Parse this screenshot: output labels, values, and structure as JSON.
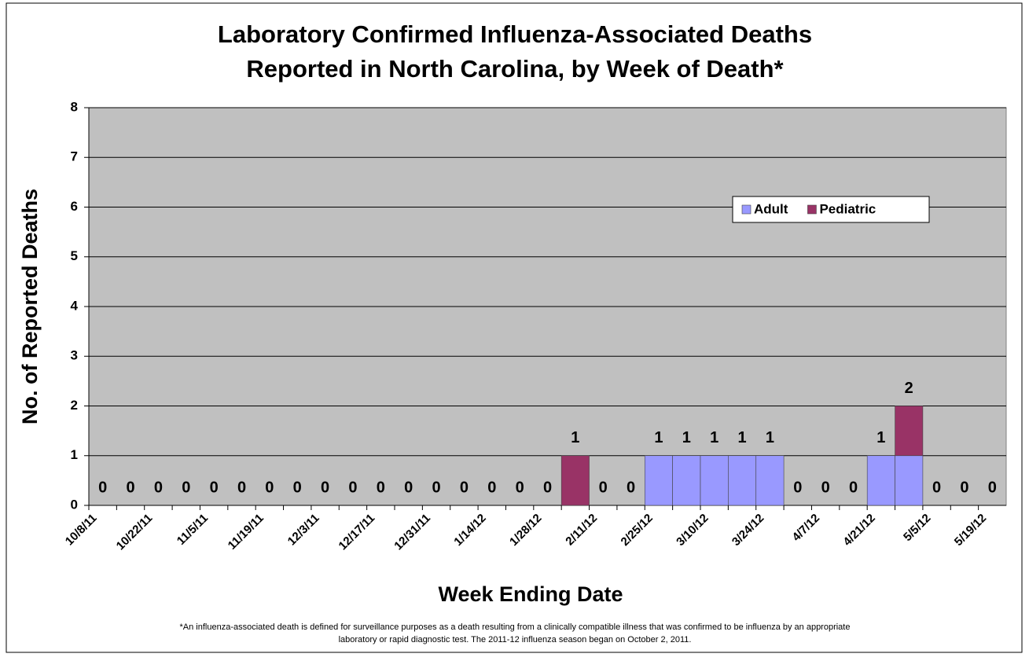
{
  "chart_data": {
    "type": "stacked_bar",
    "title": [
      "Laboratory Confirmed Influenza-Associated Deaths",
      "Reported in North Carolina, by Week of Death*"
    ],
    "x_label": "Week Ending Date",
    "y_label": "No. of Reported Deaths",
    "categories": [
      "10/8/11",
      null,
      "10/22/11",
      null,
      "11/5/11",
      null,
      "11/19/11",
      null,
      "12/3/11",
      null,
      "12/17/11",
      null,
      "12/31/11",
      null,
      "1/14/12",
      null,
      "1/28/12",
      null,
      "2/11/12",
      null,
      "2/25/12",
      null,
      "3/10/12",
      null,
      "3/24/12",
      null,
      "4/7/12",
      null,
      "4/21/12",
      null,
      "5/5/12",
      null,
      "5/19/12"
    ],
    "series": [
      {
        "name": "Adult",
        "color": "#9999ff",
        "values": [
          0,
          0,
          0,
          0,
          0,
          0,
          0,
          0,
          0,
          0,
          0,
          0,
          0,
          0,
          0,
          0,
          0,
          0,
          0,
          0,
          1,
          1,
          1,
          1,
          1,
          0,
          0,
          0,
          1,
          1,
          0,
          0,
          0
        ]
      },
      {
        "name": "Pediatric",
        "color": "#993366",
        "values": [
          0,
          0,
          0,
          0,
          0,
          0,
          0,
          0,
          0,
          0,
          0,
          0,
          0,
          0,
          0,
          0,
          0,
          1,
          0,
          0,
          0,
          0,
          0,
          0,
          0,
          0,
          0,
          0,
          0,
          1,
          0,
          0,
          0
        ]
      }
    ],
    "total_labels": [
      0,
      0,
      0,
      0,
      0,
      0,
      0,
      0,
      0,
      0,
      0,
      0,
      0,
      0,
      0,
      0,
      0,
      1,
      0,
      0,
      1,
      1,
      1,
      1,
      1,
      0,
      0,
      0,
      1,
      2,
      0,
      0,
      0
    ],
    "ylim": [
      0,
      8
    ],
    "yticks": [
      0,
      1,
      2,
      3,
      4,
      5,
      6,
      7,
      8
    ],
    "grid": true,
    "plot_background": "#c0c0c0",
    "legend": "upper right",
    "footnote": [
      "*An influenza-associated death is defined for surveillance purposes as a death resulting from a clinically compatible illness that was confirmed to be influenza by an appropriate",
      "laboratory or rapid diagnostic test. The 2011-12 influenza season began on October 2, 2011."
    ]
  }
}
